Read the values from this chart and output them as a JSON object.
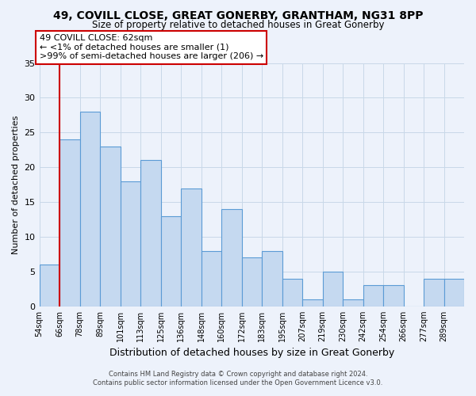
{
  "title": "49, COVILL CLOSE, GREAT GONERBY, GRANTHAM, NG31 8PP",
  "subtitle": "Size of property relative to detached houses in Great Gonerby",
  "xlabel": "Distribution of detached houses by size in Great Gonerby",
  "ylabel": "Number of detached properties",
  "bar_labels": [
    "54sqm",
    "66sqm",
    "78sqm",
    "89sqm",
    "101sqm",
    "113sqm",
    "125sqm",
    "136sqm",
    "148sqm",
    "160sqm",
    "172sqm",
    "183sqm",
    "195sqm",
    "207sqm",
    "219sqm",
    "230sqm",
    "242sqm",
    "254sqm",
    "266sqm",
    "277sqm",
    "289sqm"
  ],
  "bar_values": [
    6,
    24,
    28,
    23,
    18,
    21,
    13,
    17,
    8,
    14,
    7,
    8,
    4,
    1,
    5,
    1,
    3,
    3,
    0,
    4,
    4
  ],
  "bar_color": "#c5d9f0",
  "bar_edge_color": "#5b9bd5",
  "annotation_box_text": "49 COVILL CLOSE: 62sqm\n← <1% of detached houses are smaller (1)\n>99% of semi-detached houses are larger (206) →",
  "annotation_box_edge_color": "#cc0000",
  "annotation_box_face_color": "#ffffff",
  "marker_line_color": "#cc0000",
  "ylim": [
    0,
    35
  ],
  "yticks": [
    0,
    5,
    10,
    15,
    20,
    25,
    30,
    35
  ],
  "grid_color": "#c8d8e8",
  "bg_color": "#edf2fb",
  "footer_line1": "Contains HM Land Registry data © Crown copyright and database right 2024.",
  "footer_line2": "Contains public sector information licensed under the Open Government Licence v3.0."
}
